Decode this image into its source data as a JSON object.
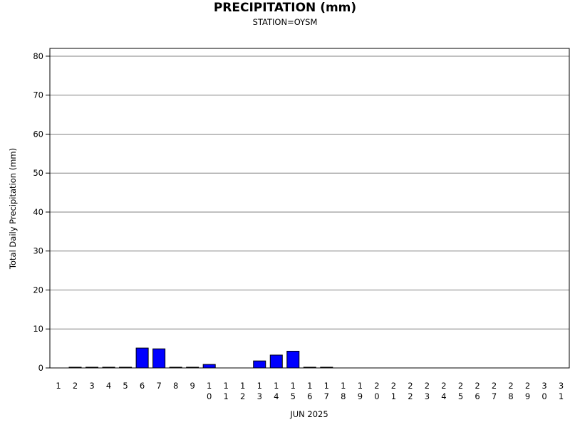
{
  "chart_data": {
    "type": "bar",
    "title": "PRECIPITATION (mm)",
    "subtitle": "STATION=OYSM",
    "xlabel": "JUN 2025",
    "ylabel": "Total Daily Precipitation (mm)",
    "ylim": [
      0,
      82
    ],
    "yticks": [
      0,
      10,
      20,
      30,
      40,
      50,
      60,
      70,
      80
    ],
    "grid": true,
    "categories": [
      "1",
      "2",
      "3",
      "4",
      "5",
      "6",
      "7",
      "8",
      "9",
      "10",
      "11",
      "12",
      "13",
      "14",
      "15",
      "16",
      "17",
      "18",
      "19",
      "20",
      "21",
      "22",
      "23",
      "24",
      "25",
      "26",
      "27",
      "28",
      "29",
      "30",
      "31"
    ],
    "values": [
      null,
      0.1,
      0.1,
      0.1,
      0.1,
      5.1,
      4.9,
      0.1,
      0.1,
      0.9,
      null,
      null,
      1.8,
      3.3,
      4.3,
      0.1,
      0.1,
      null,
      null,
      null,
      null,
      null,
      null,
      null,
      null,
      null,
      null,
      null,
      null,
      null,
      null
    ],
    "colors": {
      "bar": "#0000ff",
      "bar_edge": "#000000",
      "grid": "#808080",
      "axis": "#000000"
    }
  }
}
